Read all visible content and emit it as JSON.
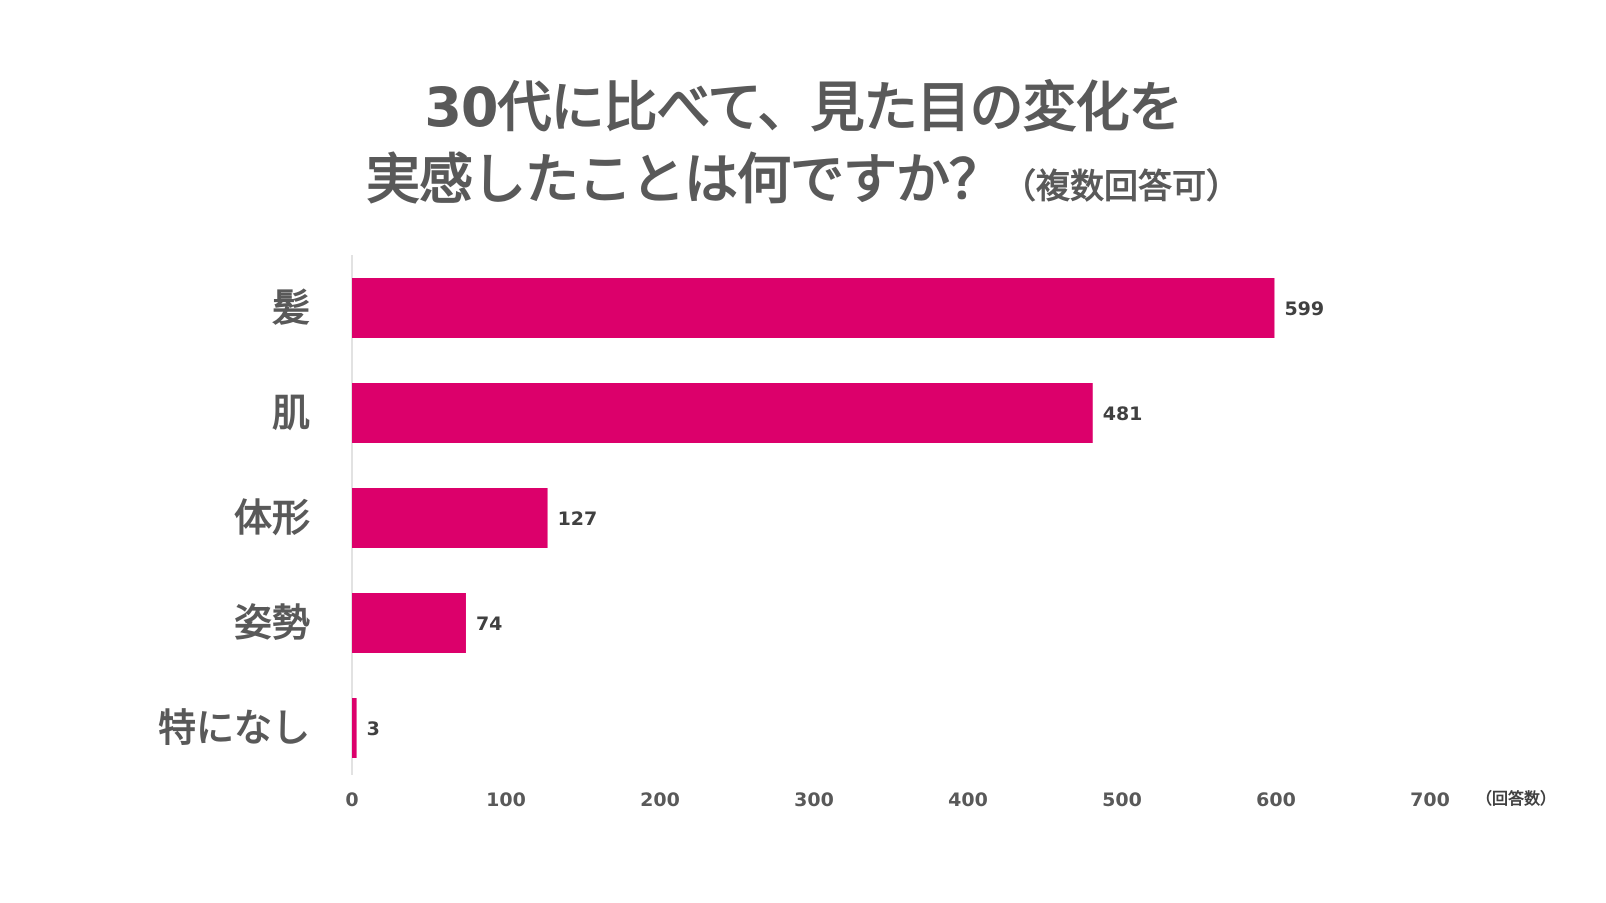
{
  "chart_data": {
    "type": "bar",
    "orientation": "horizontal",
    "title_line1": "30代に比べて、見た目の変化を",
    "title_line2": "実感したことは何ですか？",
    "title_note": "（複数回答可）",
    "categories": [
      "髪",
      "肌",
      "体形",
      "姿勢",
      "特になし"
    ],
    "values": [
      599,
      481,
      127,
      74,
      3
    ],
    "xlim": [
      0,
      700
    ],
    "xticks": [
      0,
      100,
      200,
      300,
      400,
      500,
      600,
      700
    ],
    "xunit": "（回答数）",
    "bar_color": "#DC006B",
    "axis_color": "#D9D9D9"
  }
}
